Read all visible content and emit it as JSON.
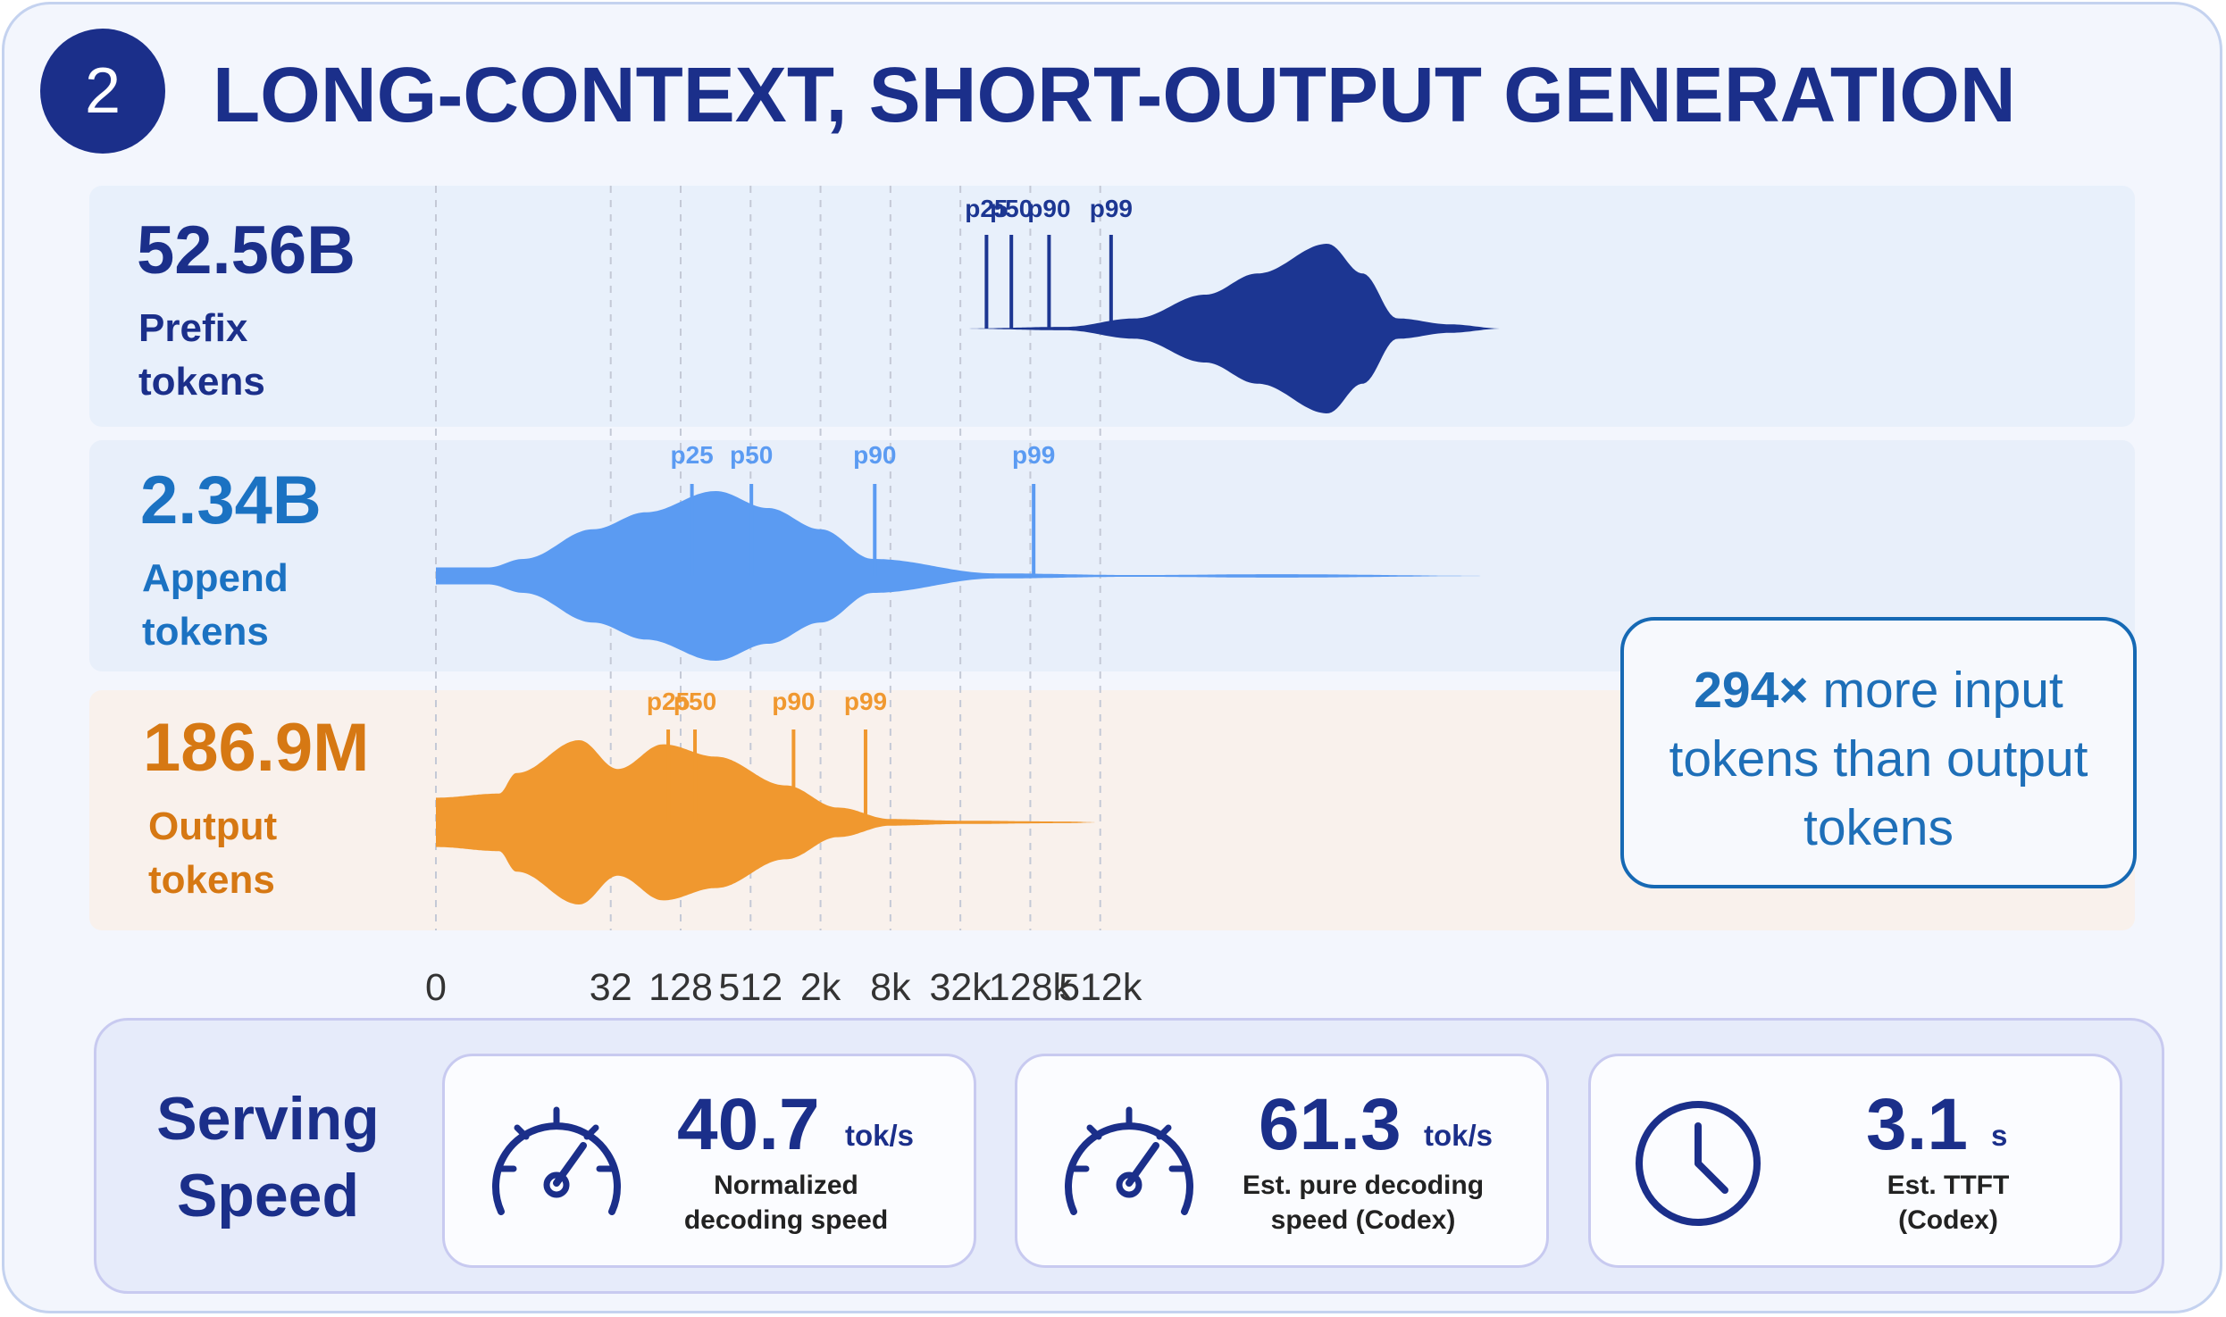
{
  "badge": "2",
  "title": "LONG-CONTEXT, SHORT-OUTPUT GENERATION",
  "chart_data": {
    "type": "violin",
    "x_scale": "log2",
    "x_ticks": [
      "0",
      "32",
      "128",
      "512",
      "2k",
      "8k",
      "32k",
      "128k",
      "512k"
    ],
    "x_tick_values": [
      0,
      32,
      128,
      512,
      2048,
      8192,
      32768,
      131072,
      524288
    ],
    "grid": true,
    "series": [
      {
        "name": "Prefix tokens",
        "total": "52.56B",
        "label": "Prefix\ntokens",
        "color": "#1c3692",
        "text_color": "#1b2f8a",
        "band_color": "#e8f0fb",
        "percentile_values": {
          "p25": 55000,
          "p50": 90000,
          "p90": 190000,
          "p99": 650000
        },
        "percentile_labels": [
          "p25",
          "p50",
          "p90",
          "p99"
        ],
        "shape_log2": [
          [
            1,
            0
          ],
          [
            5,
            0
          ],
          [
            16,
            0
          ],
          [
            19,
            0.02
          ],
          [
            21,
            0.12
          ],
          [
            23,
            0.4
          ],
          [
            24.5,
            0.65
          ],
          [
            26.5,
            1.0
          ],
          [
            27.5,
            0.65
          ],
          [
            28.5,
            0.12
          ],
          [
            30,
            0.05
          ],
          [
            31.5,
            0
          ]
        ]
      },
      {
        "name": "Append tokens",
        "total": "2.34B",
        "label": "Append\ntokens",
        "color": "#5b9bf2",
        "text_color": "#1b72c2",
        "band_color": "#e8effa",
        "percentile_values": {
          "p25": 160,
          "p50": 520,
          "p90": 6000,
          "p99": 140000
        },
        "percentile_labels": [
          "p25",
          "p50",
          "p90",
          "p99"
        ],
        "shape_log2": [
          [
            1,
            0.1
          ],
          [
            2.5,
            0.1
          ],
          [
            3.5,
            0.2
          ],
          [
            5.5,
            0.55
          ],
          [
            7,
            0.75
          ],
          [
            9,
            1.0
          ],
          [
            10.5,
            0.8
          ],
          [
            12,
            0.55
          ],
          [
            13.5,
            0.2
          ],
          [
            17,
            0.03
          ],
          [
            21,
            0.01
          ],
          [
            25,
            0.02
          ],
          [
            31.5,
            0
          ]
        ]
      },
      {
        "name": "Output tokens",
        "total": "186.9M",
        "label": "Output\ntokens",
        "color": "#f0982f",
        "text_color": "#d67813",
        "band_color": "#f9f1ec",
        "percentile_values": {
          "p25": 100,
          "p50": 170,
          "p90": 1200,
          "p99": 5000
        },
        "percentile_labels": [
          "p25",
          "p50",
          "p90",
          "p99"
        ],
        "shape_log2": [
          [
            1,
            0.3
          ],
          [
            2.8,
            0.35
          ],
          [
            3.3,
            0.6
          ],
          [
            5.1,
            1.0
          ],
          [
            6.2,
            0.65
          ],
          [
            7.5,
            0.95
          ],
          [
            9,
            0.8
          ],
          [
            11,
            0.45
          ],
          [
            12.5,
            0.18
          ],
          [
            14,
            0.04
          ],
          [
            16,
            0.02
          ],
          [
            19,
            0.01
          ],
          [
            20,
            0
          ]
        ]
      }
    ]
  },
  "callout": {
    "highlight": "294×",
    "text": " more input tokens than output tokens"
  },
  "speed": {
    "title": "Serving\nSpeed",
    "metrics": [
      {
        "value": "40.7",
        "unit": "tok/s",
        "desc": "Normalized\ndecoding speed",
        "icon": "speedometer-icon"
      },
      {
        "value": "61.3",
        "unit": "tok/s",
        "desc": "Est. pure decoding\nspeed (Codex)",
        "icon": "speedometer-icon"
      },
      {
        "value": "3.1",
        "unit": "s",
        "desc": "Est. TTFT\n(Codex)",
        "icon": "clock-icon"
      }
    ]
  }
}
